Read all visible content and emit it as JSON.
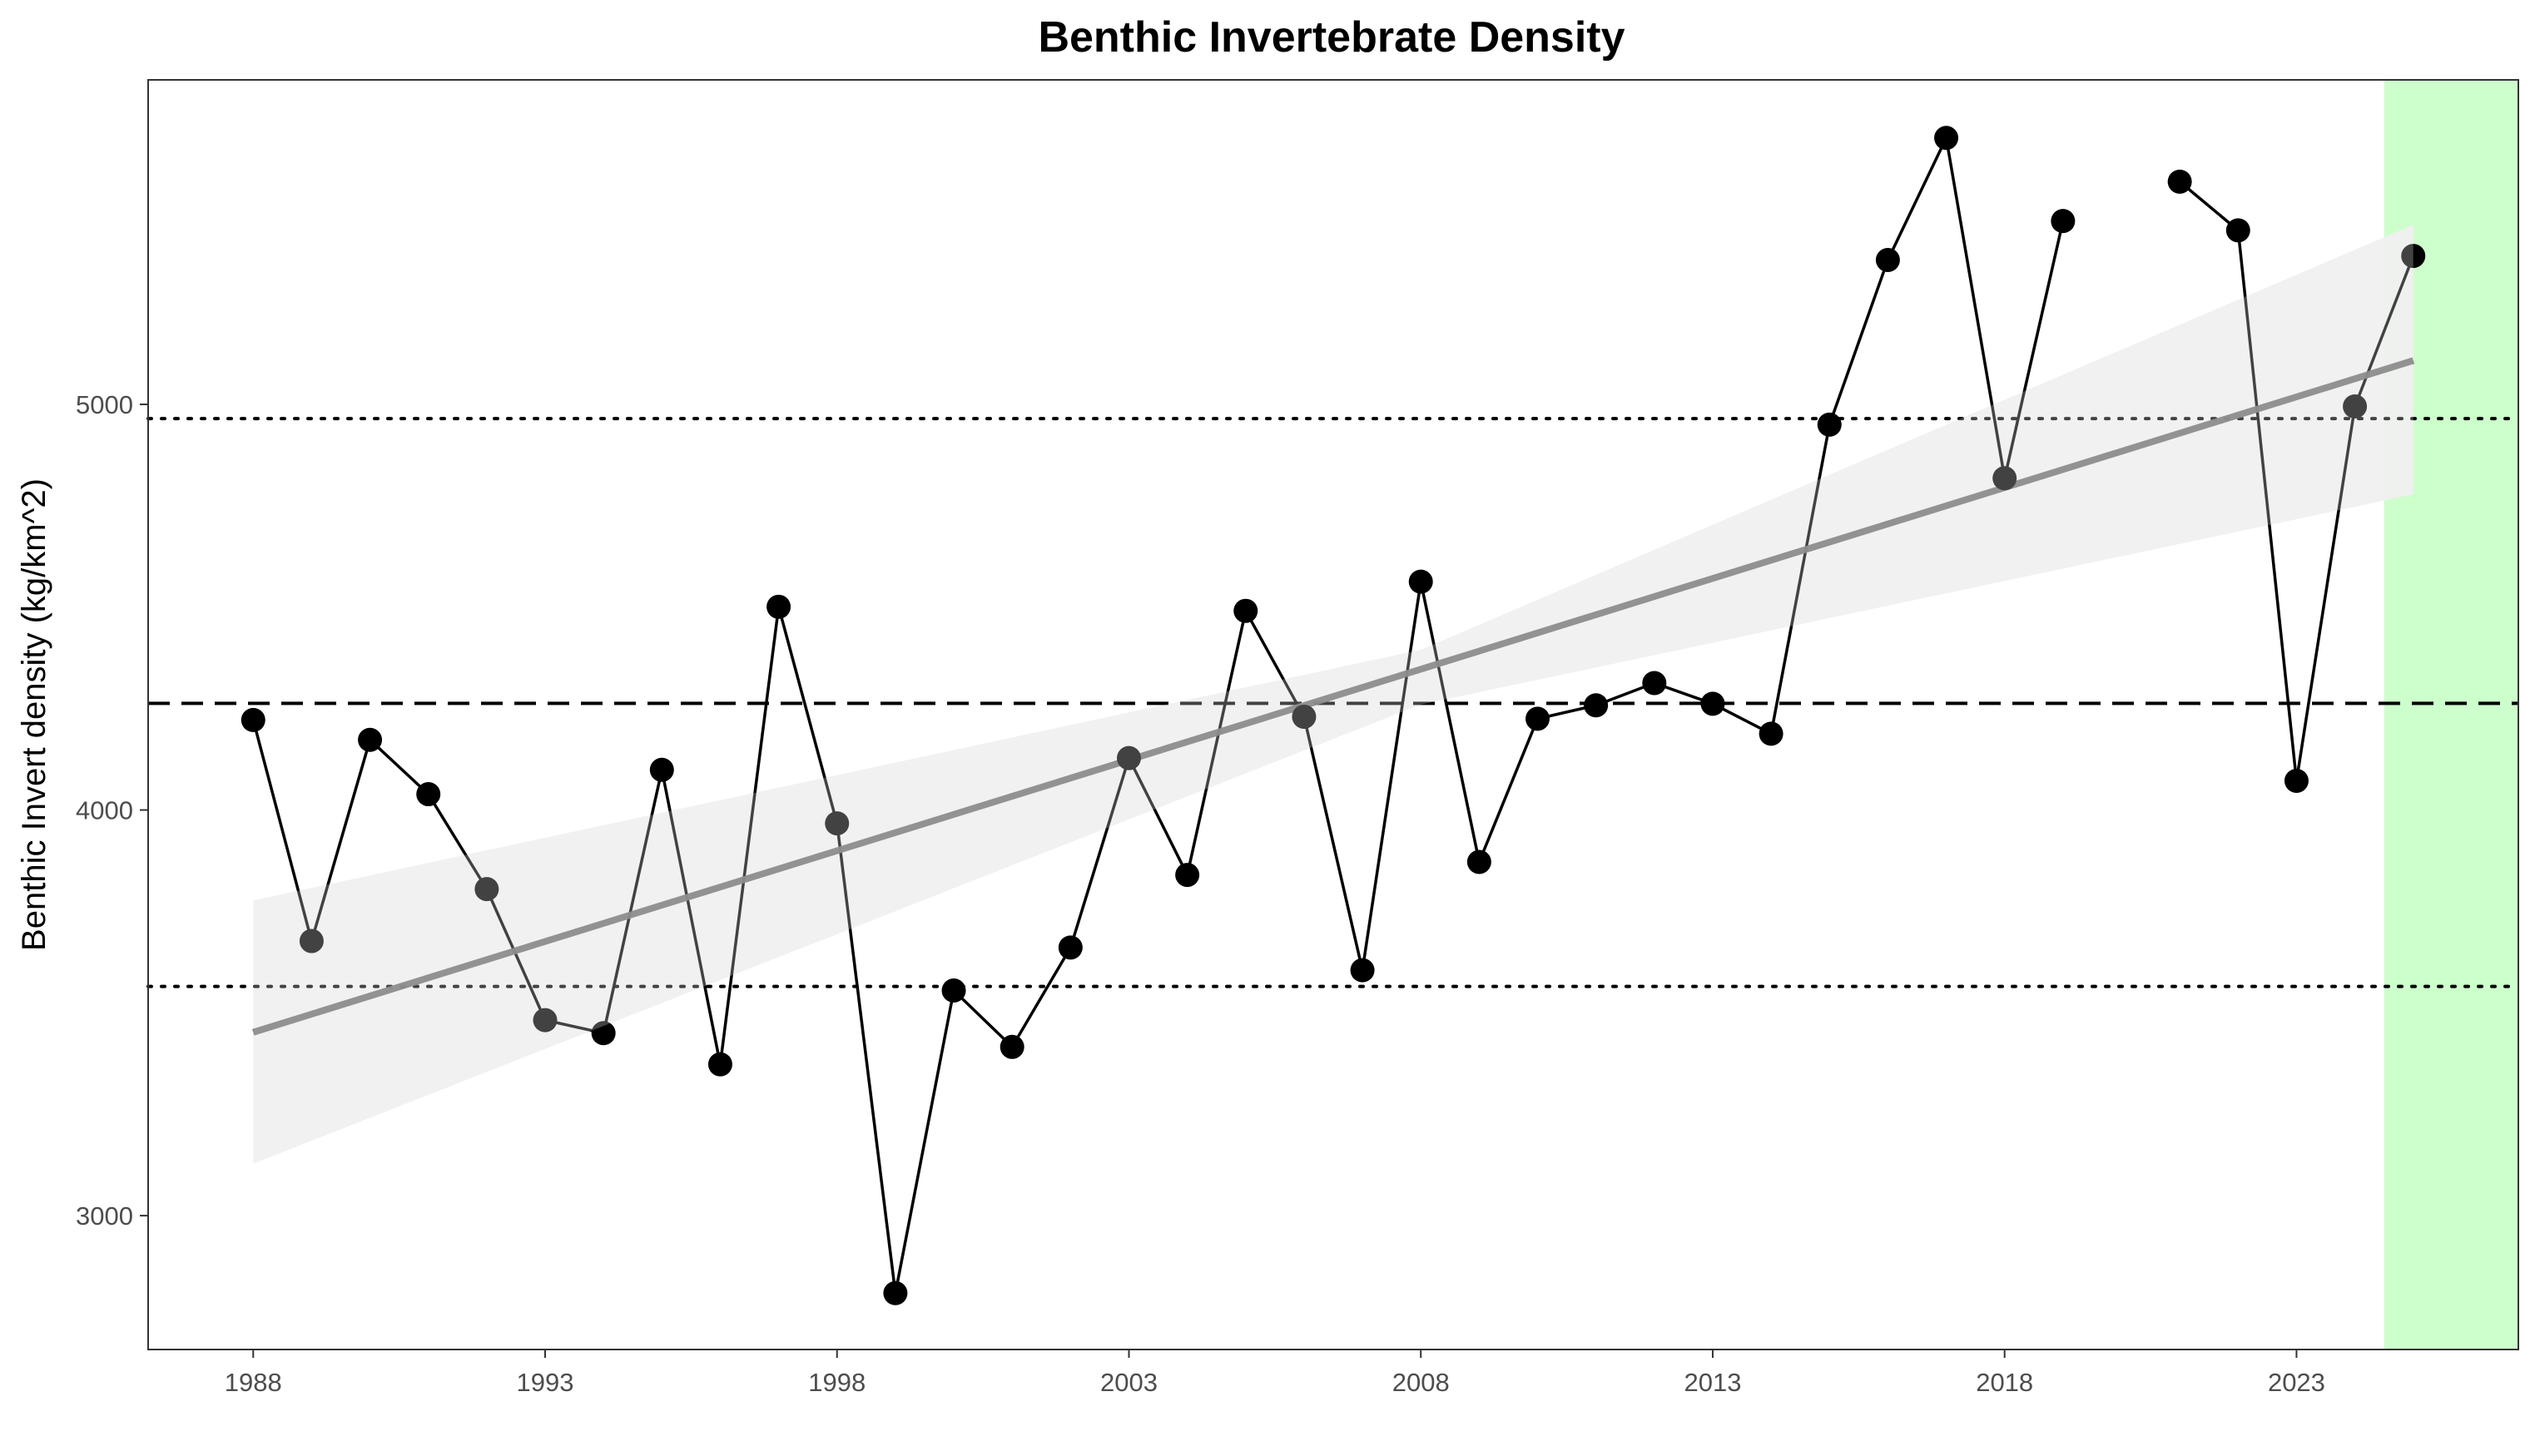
{
  "chart_data": {
    "type": "line",
    "title": "Benthic Invertebrate Density",
    "xlabel": "",
    "ylabel": "Benthic Invert density (kg/km^2)",
    "xlim": [
      1986.2,
      2026.8
    ],
    "ylim": [
      2670,
      5800
    ],
    "x_ticks": [
      1988,
      1993,
      1998,
      2003,
      2008,
      2013,
      2018,
      2023
    ],
    "x_tick_labels": [
      "1988",
      "1993",
      "1998",
      "2003",
      "2008",
      "2013",
      "2018",
      "2023"
    ],
    "y_ticks": [
      3000,
      4000,
      5000
    ],
    "y_tick_labels": [
      "3000",
      "4000",
      "5000"
    ],
    "grid": false,
    "series": [
      {
        "values": [
          {
            "x": 1988,
            "y": 4222
          },
          {
            "x": 1989,
            "y": 3677
          },
          {
            "x": 1990,
            "y": 4173
          },
          {
            "x": 1991,
            "y": 4039
          },
          {
            "x": 1992,
            "y": 3805
          },
          {
            "x": 1993,
            "y": 3482
          },
          {
            "x": 1994,
            "y": 3450
          },
          {
            "x": 1995,
            "y": 4099
          },
          {
            "x": 1996,
            "y": 3373
          },
          {
            "x": 1997,
            "y": 4501
          },
          {
            "x": 1998,
            "y": 3967
          },
          {
            "x": 1999,
            "y": 2809
          },
          {
            "x": 2000,
            "y": 3555
          },
          {
            "x": 2001,
            "y": 3416
          },
          {
            "x": 2002,
            "y": 3661
          },
          {
            "x": 2003,
            "y": 4128
          },
          {
            "x": 2004,
            "y": 3840
          },
          {
            "x": 2005,
            "y": 4491
          },
          {
            "x": 2006,
            "y": 4230
          },
          {
            "x": 2007,
            "y": 3605
          },
          {
            "x": 2008,
            "y": 4563
          },
          {
            "x": 2009,
            "y": 3872
          },
          {
            "x": 2010,
            "y": 4225
          },
          {
            "x": 2011,
            "y": 4258
          },
          {
            "x": 2012,
            "y": 4313
          },
          {
            "x": 2013,
            "y": 4262
          },
          {
            "x": 2014,
            "y": 4188
          },
          {
            "x": 2015,
            "y": 4950
          },
          {
            "x": 2016,
            "y": 5356
          },
          {
            "x": 2017,
            "y": 5657
          },
          {
            "x": 2018,
            "y": 4818
          },
          {
            "x": 2019,
            "y": 5452
          },
          {
            "x": 2021,
            "y": 5549
          },
          {
            "x": 2022,
            "y": 5429
          },
          {
            "x": 2023,
            "y": 4072
          },
          {
            "x": 2024,
            "y": 4995
          },
          {
            "x": 2025,
            "y": 5366
          }
        ],
        "color": "#000000"
      }
    ],
    "trend_line": {
      "start": {
        "x": 1988,
        "y": 3452
      },
      "end": {
        "x": 2025,
        "y": 5108
      },
      "color": "#666666",
      "ci_band": {
        "lower_start": 3128,
        "upper_start": 3777,
        "lower_mid": 4260,
        "upper_mid": 4395,
        "mid_x": 2008,
        "lower_end": 4778,
        "upper_end": 5443,
        "color": "#ebebeb"
      }
    },
    "reference_lines": {
      "mean": {
        "y": 4263,
        "style": "dashed"
      },
      "upper_sd": {
        "y": 4965,
        "style": "dotted"
      },
      "lower_sd": {
        "y": 3565,
        "style": "dotted"
      }
    },
    "highlight_region": {
      "x_start": 2024.5,
      "x_end": 2026.8,
      "color": "#ccffcc"
    }
  }
}
